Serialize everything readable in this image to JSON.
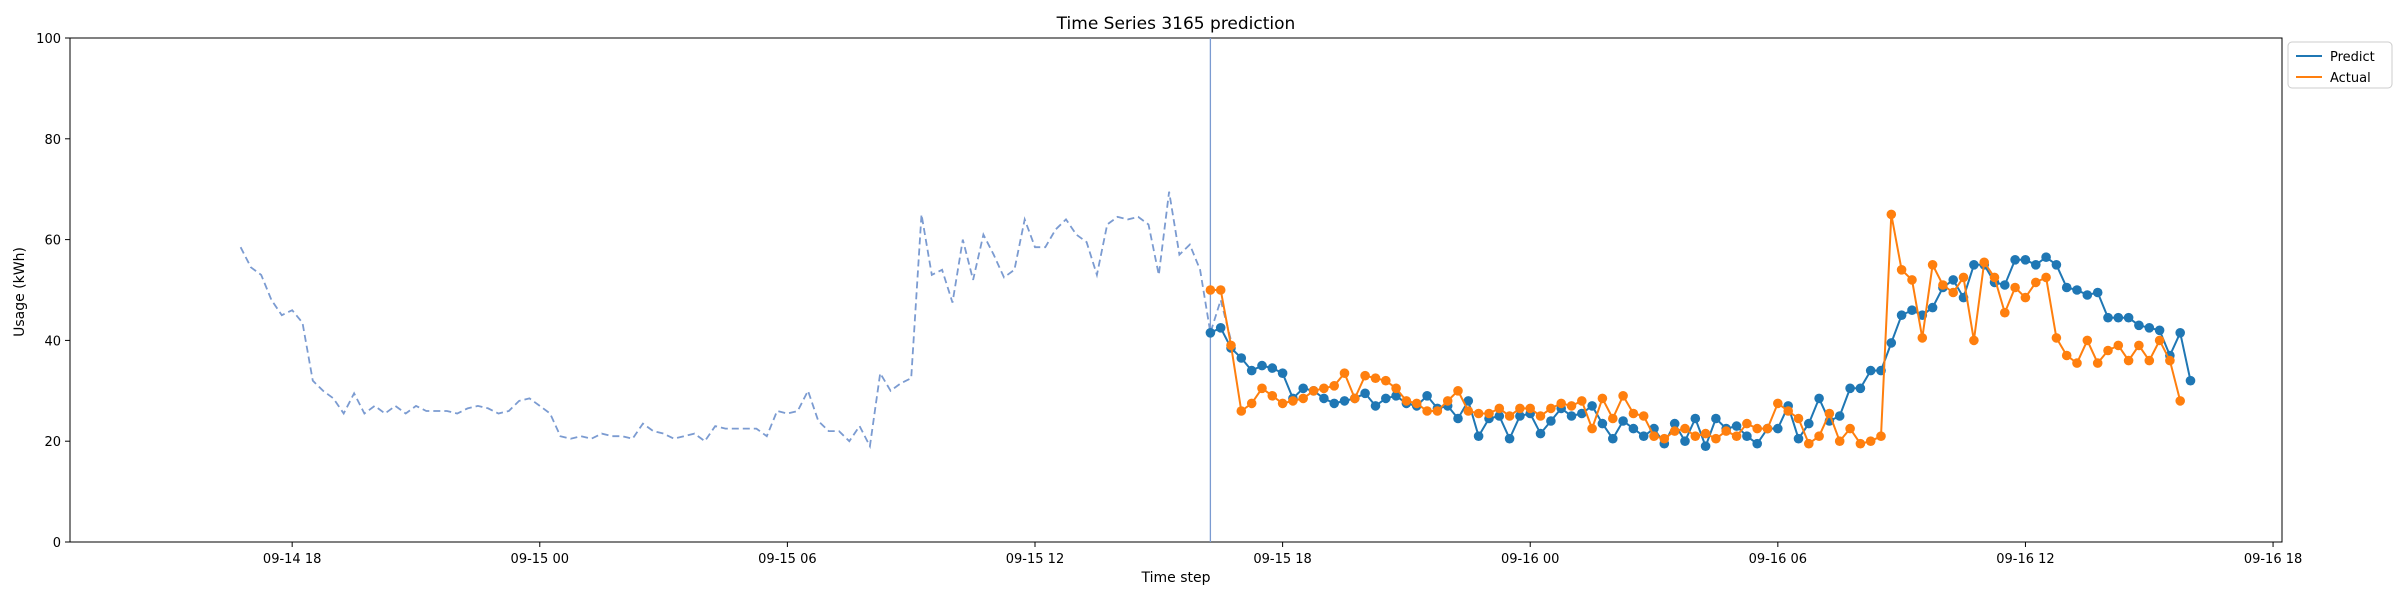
{
  "chart_data": {
    "type": "line",
    "title": "Time Series 3165 prediction",
    "xlabel": "Time step",
    "ylabel": "Usage (kWh)",
    "ylim": [
      0,
      100
    ],
    "yticks": [
      0,
      20,
      40,
      60,
      80,
      100
    ],
    "xlim": [
      "2024-09-14 12:37",
      "2024-09-16 18:13"
    ],
    "xticks": [
      {
        "value": "2024-09-14 18:00",
        "label": "09-14 18"
      },
      {
        "value": "2024-09-15 00:00",
        "label": "09-15 00"
      },
      {
        "value": "2024-09-15 06:00",
        "label": "09-15 06"
      },
      {
        "value": "2024-09-15 12:00",
        "label": "09-15 12"
      },
      {
        "value": "2024-09-15 18:00",
        "label": "09-15 18"
      },
      {
        "value": "2024-09-16 00:00",
        "label": "09-16 00"
      },
      {
        "value": "2024-09-16 06:00",
        "label": "09-16 06"
      },
      {
        "value": "2024-09-16 12:00",
        "label": "09-16 12"
      },
      {
        "value": "2024-09-16 18:00",
        "label": "09-16 18"
      }
    ],
    "grid": false,
    "legend_position": "top-right",
    "vline_x": "2024-09-15 16:15",
    "colors": {
      "history": "#7b9bd1",
      "predict": "#1f77b4",
      "actual": "#ff7f0e",
      "vline": "#7b9bd1"
    },
    "history": {
      "start": "2024-09-14 16:45",
      "interval_minutes": 15,
      "values": [
        58.5,
        54.5,
        53,
        48,
        45,
        46,
        43.5,
        32,
        30,
        28.5,
        25.5,
        29.5,
        25.5,
        27,
        25.5,
        27,
        25.5,
        27,
        26,
        26,
        26,
        25.5,
        26.5,
        27,
        26.5,
        25.5,
        26,
        28,
        28.5,
        27,
        25.5,
        21,
        20.5,
        21,
        20.5,
        21.5,
        21,
        21,
        20.5,
        23.5,
        22,
        21.5,
        20.5,
        21,
        21.5,
        20,
        23,
        22.5,
        22.5,
        22.5,
        22.5,
        21,
        26,
        25.5,
        26,
        30,
        24,
        22,
        22,
        20,
        23,
        19,
        33.5,
        30,
        31.5,
        32.5,
        65,
        53,
        54,
        47.5,
        60,
        52,
        61,
        57,
        52.5,
        54,
        64,
        58.5,
        58.5,
        62,
        64,
        61,
        59.5,
        53,
        63,
        64.5,
        64,
        64.5,
        63,
        53,
        69.5,
        57,
        59,
        54,
        41.5,
        48,
        40
      ]
    },
    "series": [
      {
        "name": "Predict",
        "start": "2024-09-15 16:15",
        "interval_minutes": 15,
        "values": [
          41.5,
          42.5,
          38.5,
          36.5,
          34,
          35,
          34.5,
          33.5,
          28.5,
          30.5,
          30,
          28.5,
          27.5,
          28,
          28.5,
          29.5,
          27,
          28.5,
          29,
          27.5,
          27,
          29,
          26.5,
          27,
          24.5,
          28,
          21,
          24.5,
          25,
          20.5,
          25,
          25.5,
          21.5,
          24,
          26.5,
          25,
          25.5,
          27,
          23.5,
          20.5,
          24,
          22.5,
          21,
          22.5,
          19.5,
          23.5,
          20,
          24.5,
          19,
          24.5,
          22.5,
          23,
          21,
          19.5,
          22.5,
          22.5,
          27,
          20.5,
          23.5,
          28.5,
          24,
          25,
          30.5,
          30.5,
          34,
          34,
          39.5,
          45,
          46,
          45,
          46.5,
          50.5,
          52,
          48.5,
          55,
          55,
          51.5,
          51,
          56,
          56,
          55,
          56.5,
          55,
          50.5,
          50,
          49,
          49.5,
          44.5,
          44.5,
          44.5,
          43,
          42.5,
          42,
          37,
          41.5,
          32
        ]
      },
      {
        "name": "Actual",
        "start": "2024-09-15 16:15",
        "interval_minutes": 15,
        "values": [
          50,
          50,
          39,
          26,
          27.5,
          30.5,
          29,
          27.5,
          28,
          28.5,
          30,
          30.5,
          31,
          33.5,
          28.5,
          33,
          32.5,
          32,
          30.5,
          28,
          27.5,
          26,
          26,
          28,
          30,
          26,
          25.5,
          25.5,
          26.5,
          25,
          26.5,
          26.5,
          25,
          26.5,
          27.5,
          27,
          28,
          22.5,
          28.5,
          24.5,
          29,
          25.5,
          25,
          21,
          20.5,
          22,
          22.5,
          21,
          21.5,
          20.5,
          22,
          21,
          23.5,
          22.5,
          22.5,
          27.5,
          26,
          24.5,
          19.5,
          21,
          25.5,
          20,
          22.5,
          19.5,
          20,
          21,
          65,
          54,
          52,
          40.5,
          55,
          51,
          49.5,
          52.5,
          40,
          55.5,
          52.5,
          45.5,
          50.5,
          48.5,
          51.5,
          52.5,
          40.5,
          37,
          35.5,
          40,
          35.5,
          38,
          39,
          36,
          39,
          36,
          40,
          36,
          28
        ]
      }
    ]
  }
}
